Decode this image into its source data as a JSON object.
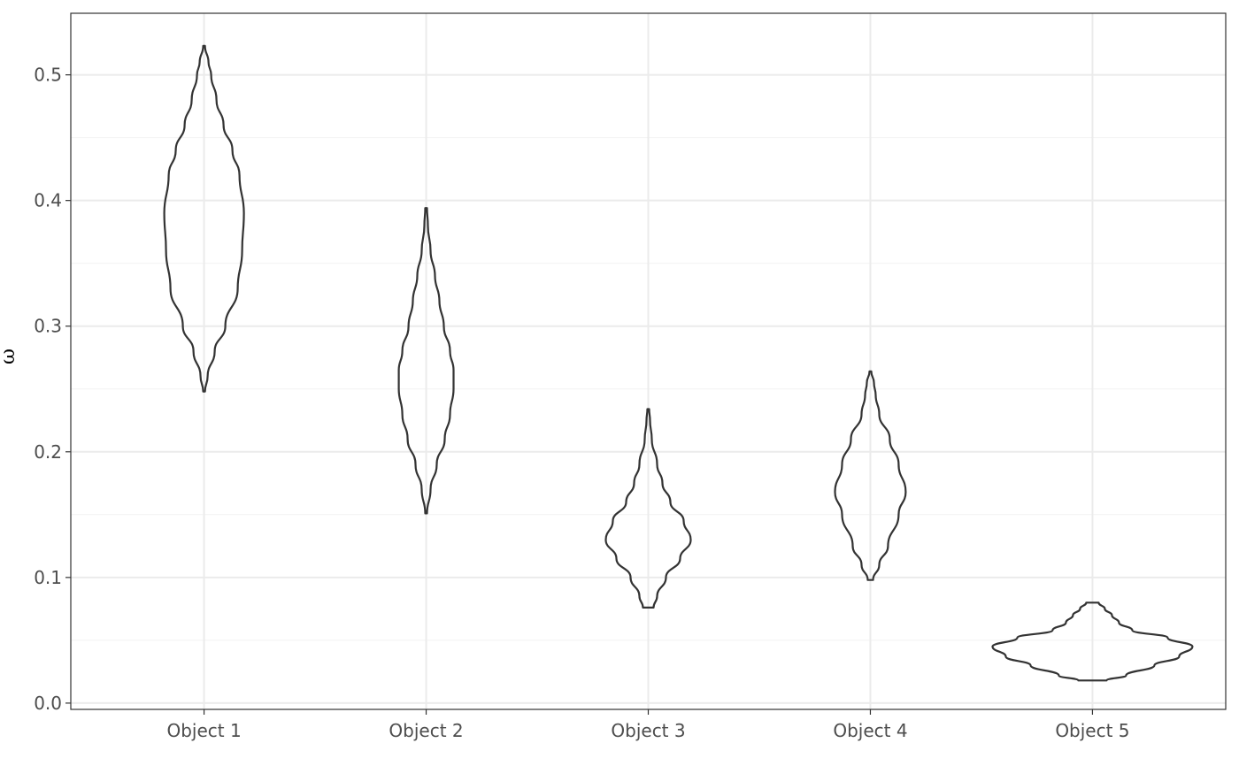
{
  "chart_data": {
    "type": "violin",
    "title": "",
    "xlabel": "",
    "ylabel": "ω",
    "categories": [
      "Object 1",
      "Object 2",
      "Object 3",
      "Object 4",
      "Object 5"
    ],
    "ylim": [
      -0.005,
      0.549
    ],
    "yticks": [
      0.0,
      0.1,
      0.2,
      0.3,
      0.4,
      0.5
    ],
    "ytick_labels": [
      "0.0",
      "0.1",
      "0.2",
      "0.3",
      "0.4",
      "0.5"
    ],
    "grid": true,
    "legend": "none",
    "colors": {
      "outline": "#333333",
      "grid_major": "#ebebeb",
      "grid_minor": "#f2f2f2",
      "panel_border": "#333333"
    },
    "violins": [
      {
        "name": "Object 1",
        "min": 0.248,
        "max": 0.523,
        "profile": [
          [
            0.248,
            0.001
          ],
          [
            0.26,
            0.004
          ],
          [
            0.28,
            0.012
          ],
          [
            0.3,
            0.024
          ],
          [
            0.33,
            0.038
          ],
          [
            0.36,
            0.043
          ],
          [
            0.39,
            0.045
          ],
          [
            0.42,
            0.04
          ],
          [
            0.44,
            0.032
          ],
          [
            0.46,
            0.022
          ],
          [
            0.48,
            0.014
          ],
          [
            0.5,
            0.008
          ],
          [
            0.51,
            0.005
          ],
          [
            0.523,
            0.001
          ]
        ]
      },
      {
        "name": "Object 2",
        "min": 0.151,
        "max": 0.394,
        "profile": [
          [
            0.151,
            0.001
          ],
          [
            0.17,
            0.005
          ],
          [
            0.19,
            0.012
          ],
          [
            0.21,
            0.021
          ],
          [
            0.23,
            0.027
          ],
          [
            0.25,
            0.031
          ],
          [
            0.265,
            0.031
          ],
          [
            0.28,
            0.027
          ],
          [
            0.3,
            0.02
          ],
          [
            0.32,
            0.015
          ],
          [
            0.34,
            0.01
          ],
          [
            0.36,
            0.005
          ],
          [
            0.38,
            0.002
          ],
          [
            0.394,
            0.001
          ]
        ]
      },
      {
        "name": "Object 3",
        "min": 0.076,
        "max": 0.234,
        "profile": [
          [
            0.076,
            0.006
          ],
          [
            0.085,
            0.01
          ],
          [
            0.1,
            0.02
          ],
          [
            0.115,
            0.036
          ],
          [
            0.13,
            0.048
          ],
          [
            0.145,
            0.04
          ],
          [
            0.16,
            0.025
          ],
          [
            0.175,
            0.016
          ],
          [
            0.19,
            0.01
          ],
          [
            0.21,
            0.004
          ],
          [
            0.225,
            0.002
          ],
          [
            0.234,
            0.001
          ]
        ]
      },
      {
        "name": "Object 4",
        "min": 0.098,
        "max": 0.264,
        "profile": [
          [
            0.098,
            0.003
          ],
          [
            0.11,
            0.01
          ],
          [
            0.125,
            0.02
          ],
          [
            0.15,
            0.032
          ],
          [
            0.168,
            0.04
          ],
          [
            0.19,
            0.032
          ],
          [
            0.21,
            0.022
          ],
          [
            0.23,
            0.01
          ],
          [
            0.245,
            0.006
          ],
          [
            0.255,
            0.004
          ],
          [
            0.264,
            0.001
          ]
        ]
      },
      {
        "name": "Object 5",
        "min": 0.018,
        "max": 0.08,
        "profile": [
          [
            0.018,
            0.016
          ],
          [
            0.022,
            0.038
          ],
          [
            0.03,
            0.07
          ],
          [
            0.037,
            0.098
          ],
          [
            0.045,
            0.113
          ],
          [
            0.052,
            0.085
          ],
          [
            0.058,
            0.045
          ],
          [
            0.064,
            0.03
          ],
          [
            0.07,
            0.022
          ],
          [
            0.075,
            0.014
          ],
          [
            0.08,
            0.007
          ]
        ]
      }
    ]
  }
}
